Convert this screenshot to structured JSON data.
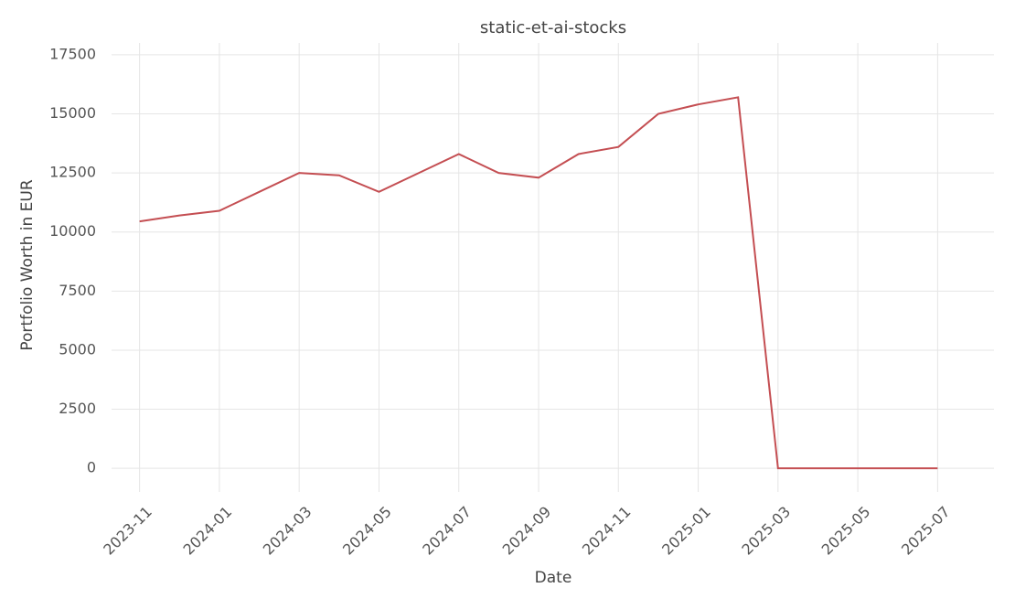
{
  "chart_data": {
    "type": "line",
    "title": "static-et-ai-stocks",
    "x_label": "Date",
    "y_label": "Portfolio Worth in EUR",
    "x": [
      "2023-11",
      "2023-12",
      "2024-01",
      "2024-02",
      "2024-03",
      "2024-04",
      "2024-05",
      "2024-06",
      "2024-07",
      "2024-08",
      "2024-09",
      "2024-10",
      "2024-11",
      "2024-12",
      "2025-01",
      "2025-02",
      "2025-03",
      "2025-04",
      "2025-05",
      "2025-06",
      "2025-07"
    ],
    "series": [
      {
        "name": "static-et-ai-stocks",
        "color": "#c44e52",
        "values": [
          10450,
          10700,
          10900,
          11700,
          12500,
          12400,
          11700,
          12500,
          13300,
          12500,
          12300,
          13300,
          13600,
          15000,
          15400,
          15700,
          0,
          0,
          0,
          0,
          0
        ]
      }
    ],
    "xlim": [
      "2023-10",
      "2025-08"
    ],
    "xticks": [
      "2023-11",
      "2024-01",
      "2024-03",
      "2024-05",
      "2024-07",
      "2024-09",
      "2024-11",
      "2025-01",
      "2025-03",
      "2025-05",
      "2025-07"
    ],
    "ylim": [
      -1000,
      18000
    ],
    "yticks": [
      0,
      2500,
      5000,
      7500,
      10000,
      12500,
      15000,
      17500
    ],
    "grid": true
  }
}
